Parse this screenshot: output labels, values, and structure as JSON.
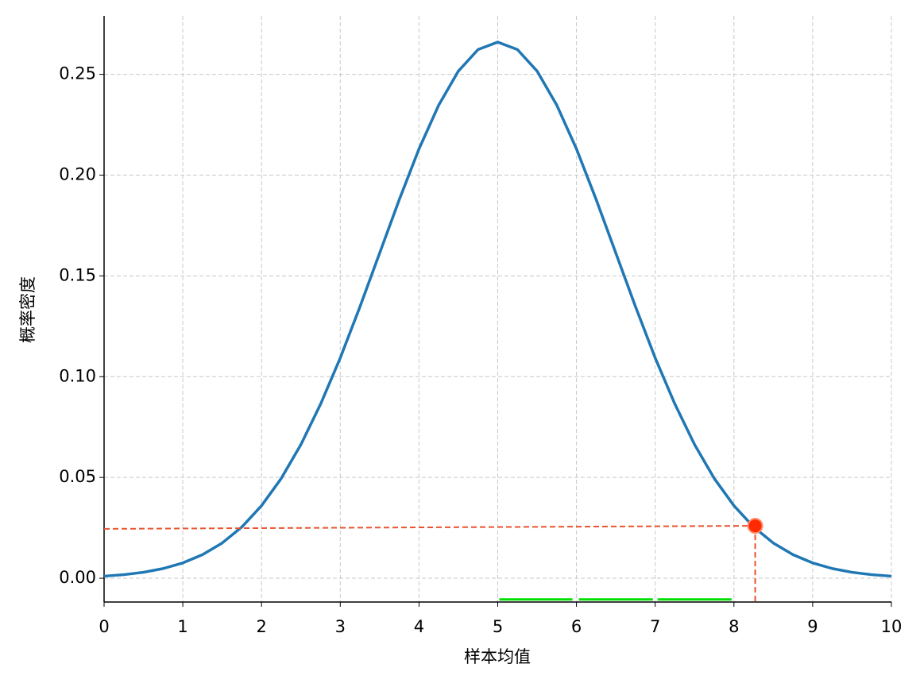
{
  "chart_data": {
    "type": "line",
    "xlabel": "样本均值",
    "ylabel": "概率密度",
    "x": [
      0,
      0.25,
      0.5,
      0.75,
      1,
      1.25,
      1.5,
      1.75,
      2,
      2.25,
      2.5,
      2.75,
      3,
      3.25,
      3.5,
      3.75,
      4,
      4.25,
      4.5,
      4.75,
      5,
      5.25,
      5.5,
      5.75,
      6,
      6.25,
      6.5,
      6.75,
      7,
      7.25,
      7.5,
      7.75,
      8,
      8.25,
      8.5,
      8.75,
      9,
      9.25,
      9.5,
      9.75,
      10
    ],
    "series": [
      {
        "color": "#1f77b4",
        "values": [
          0.00103,
          0.00177,
          0.00295,
          0.0048,
          0.0076,
          0.01168,
          0.01748,
          0.02543,
          0.036,
          0.0495,
          0.0663,
          0.0864,
          0.1093,
          0.1347,
          0.1613,
          0.1879,
          0.213,
          0.2347,
          0.2516,
          0.2623,
          0.266,
          0.2623,
          0.2516,
          0.2347,
          0.213,
          0.1879,
          0.1613,
          0.1347,
          0.1093,
          0.0864,
          0.0663,
          0.0495,
          0.036,
          0.02543,
          0.01748,
          0.01168,
          0.0076,
          0.0048,
          0.00295,
          0.00177,
          0.00103
        ]
      }
    ],
    "marker": {
      "x": 8.27,
      "y": 0.026,
      "color": "#ff2a00"
    },
    "guide_line": {
      "x": [
        0,
        8.27
      ],
      "y": [
        0.0245,
        0.026
      ],
      "color": "#e8532e"
    },
    "segments": {
      "color": "#00e000",
      "y": -0.0105,
      "x": [
        [
          5.02,
          5.95
        ],
        [
          6.03,
          6.97
        ],
        [
          7.03,
          7.97
        ]
      ]
    },
    "xlim": [
      0,
      10
    ],
    "ylim": [
      -0.0118,
      0.279
    ],
    "xticks": [
      0,
      1,
      2,
      3,
      4,
      5,
      6,
      7,
      8,
      9,
      10
    ],
    "yticks": [
      {
        "value": 0,
        "label": "0.00"
      },
      {
        "value": 0.05,
        "label": "0.05"
      },
      {
        "value": 0.1,
        "label": "0.10"
      },
      {
        "value": 0.15,
        "label": "0.15"
      },
      {
        "value": 0.2,
        "label": "0.20"
      },
      {
        "value": 0.25,
        "label": "0.25"
      }
    ],
    "grid": true
  }
}
